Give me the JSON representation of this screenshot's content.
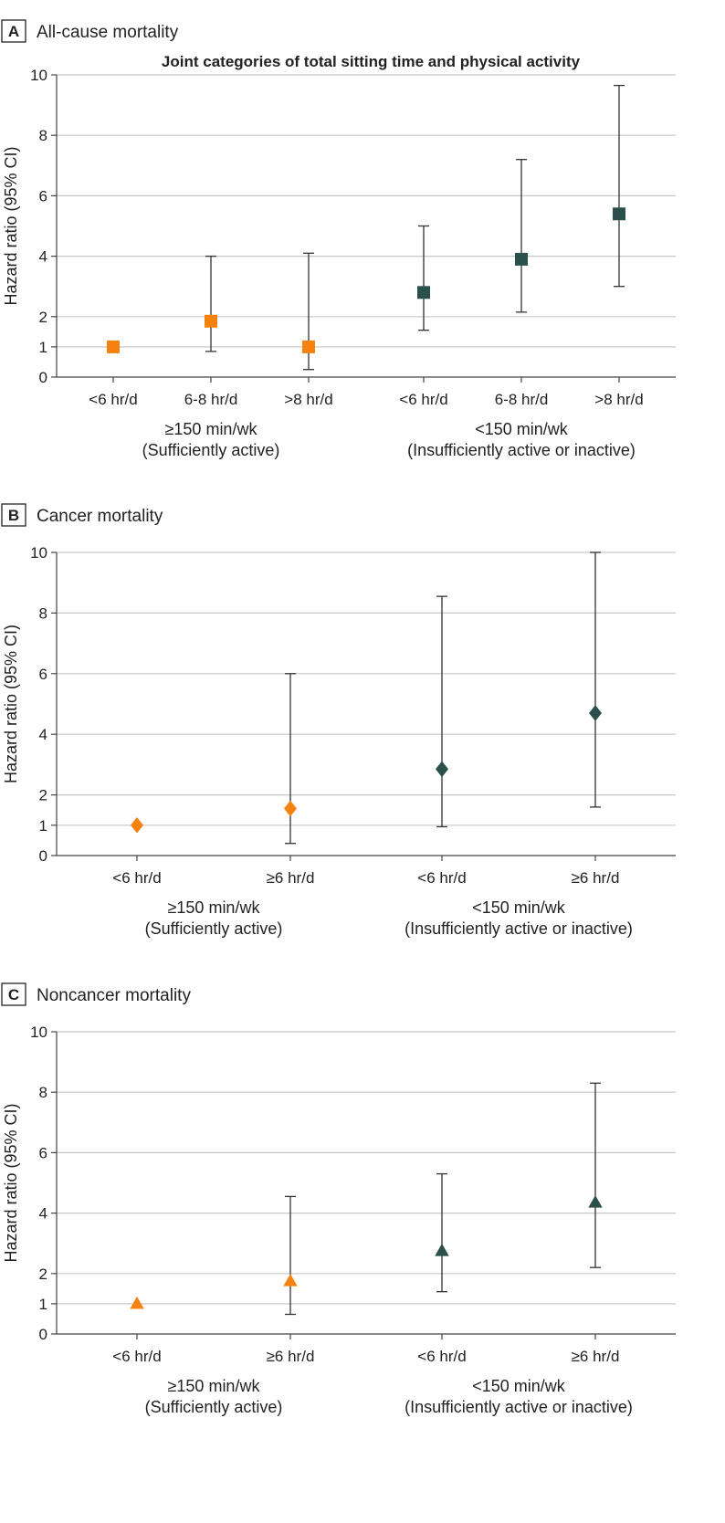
{
  "colors": {
    "active": "#f5820f",
    "inactive": "#2b4f4b",
    "grid": "#c8c8c8",
    "axis": "#444444"
  },
  "chart_data": [
    {
      "type": "scatter",
      "letter": "A",
      "title": "All-cause mortality",
      "subtitle": "Joint categories of total sitting time and physical activity",
      "ylabel": "Hazard ratio (95% CI)",
      "ylim": [
        0,
        10
      ],
      "yticks": [
        "0",
        "1",
        "2",
        "4",
        "6",
        "8",
        "10"
      ],
      "marker": "square",
      "categories": [
        "<6 hr/d",
        "6-8 hr/d",
        ">8 hr/d",
        "<6 hr/d",
        "6-8 hr/d",
        ">8 hr/d"
      ],
      "groups": [
        {
          "name": "≥150 min/wk",
          "description": "(Sufficiently active)",
          "color": "active"
        },
        {
          "name": "<150 min/wk",
          "description": "(Insufficiently active or inactive)",
          "color": "inactive"
        }
      ],
      "points": [
        {
          "hr": 1.0,
          "lower": null,
          "upper": null,
          "group": 0
        },
        {
          "hr": 1.85,
          "lower": 0.85,
          "upper": 4.0,
          "group": 0
        },
        {
          "hr": 1.0,
          "lower": 0.25,
          "upper": 4.1,
          "group": 0
        },
        {
          "hr": 2.8,
          "lower": 1.55,
          "upper": 5.0,
          "group": 1
        },
        {
          "hr": 3.9,
          "lower": 2.15,
          "upper": 7.2,
          "group": 1
        },
        {
          "hr": 5.4,
          "lower": 3.0,
          "upper": 9.65,
          "group": 1
        }
      ]
    },
    {
      "type": "scatter",
      "letter": "B",
      "title": "Cancer mortality",
      "subtitle": "",
      "ylabel": "Hazard ratio (95% CI)",
      "ylim": [
        0,
        10
      ],
      "yticks": [
        "0",
        "1",
        "2",
        "4",
        "6",
        "8",
        "10"
      ],
      "marker": "diamond",
      "categories": [
        "<6 hr/d",
        "≥6 hr/d",
        "<6 hr/d",
        "≥6 hr/d"
      ],
      "groups": [
        {
          "name": "≥150 min/wk",
          "description": "(Sufficiently active)",
          "color": "active"
        },
        {
          "name": "<150 min/wk",
          "description": "(Insufficiently active or inactive)",
          "color": "inactive"
        }
      ],
      "points": [
        {
          "hr": 1.0,
          "lower": null,
          "upper": null,
          "group": 0
        },
        {
          "hr": 1.55,
          "lower": 0.4,
          "upper": 6.0,
          "group": 0
        },
        {
          "hr": 2.85,
          "lower": 0.95,
          "upper": 8.55,
          "group": 1
        },
        {
          "hr": 4.7,
          "lower": 1.6,
          "upper": 10.0,
          "group": 1
        }
      ]
    },
    {
      "type": "scatter",
      "letter": "C",
      "title": "Noncancer mortality",
      "subtitle": "",
      "ylabel": "Hazard ratio (95% CI)",
      "ylim": [
        0,
        10
      ],
      "yticks": [
        "0",
        "1",
        "2",
        "4",
        "6",
        "8",
        "10"
      ],
      "marker": "triangle",
      "categories": [
        "<6 hr/d",
        "≥6 hr/d",
        "<6 hr/d",
        "≥6 hr/d"
      ],
      "groups": [
        {
          "name": "≥150 min/wk",
          "description": "(Sufficiently active)",
          "color": "active"
        },
        {
          "name": "<150 min/wk",
          "description": "(Insufficiently active or inactive)",
          "color": "inactive"
        }
      ],
      "points": [
        {
          "hr": 1.0,
          "lower": null,
          "upper": null,
          "group": 0
        },
        {
          "hr": 1.75,
          "lower": 0.65,
          "upper": 4.55,
          "group": 0
        },
        {
          "hr": 2.75,
          "lower": 1.4,
          "upper": 5.3,
          "group": 1
        },
        {
          "hr": 4.35,
          "lower": 2.2,
          "upper": 8.3,
          "group": 1
        }
      ]
    }
  ]
}
